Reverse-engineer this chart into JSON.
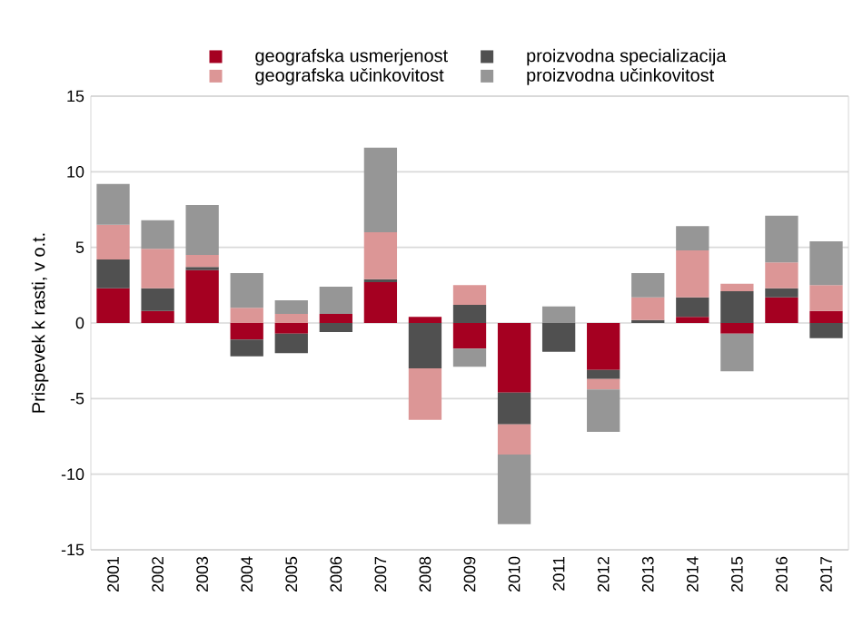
{
  "chart_data": {
    "type": "bar",
    "stacked": true,
    "ylabel": "Prispevek k rasti, v o.t.",
    "categories": [
      "2001",
      "2002",
      "2003",
      "2004",
      "2005",
      "2006",
      "2007",
      "2008",
      "2009",
      "2010",
      "2011",
      "2012",
      "2013",
      "2014",
      "2015",
      "2016",
      "2017"
    ],
    "series": [
      {
        "name": "geografska usmerjenost",
        "color": "#a50021",
        "values": [
          2.3,
          0.8,
          3.5,
          -1.1,
          -0.7,
          0.6,
          2.7,
          0.4,
          -1.7,
          -4.6,
          0,
          -3.1,
          0,
          0.4,
          -0.7,
          1.7,
          0.8
        ]
      },
      {
        "name": "proizvodna specializacija",
        "color": "#505050",
        "values": [
          1.9,
          1.5,
          0.2,
          -1.1,
          -1.3,
          -0.6,
          0.2,
          -3.0,
          1.2,
          -2.1,
          -1.9,
          -0.6,
          0.2,
          1.3,
          2.1,
          0.6,
          -1.0
        ]
      },
      {
        "name": "geografska učinkovitost",
        "color": "#dc9696",
        "values": [
          2.3,
          2.6,
          0.8,
          1.0,
          0.6,
          0,
          3.1,
          -3.4,
          1.3,
          -2.0,
          0,
          -0.7,
          1.5,
          3.1,
          0.5,
          1.7,
          1.7
        ]
      },
      {
        "name": "proizvodna učinkovitost",
        "color": "#969696",
        "values": [
          2.7,
          1.9,
          3.3,
          2.3,
          0.9,
          1.8,
          5.6,
          0,
          -1.2,
          -4.6,
          1.1,
          -2.8,
          1.6,
          1.6,
          -2.5,
          3.1,
          2.9
        ]
      }
    ],
    "ylim": [
      -15,
      15
    ],
    "yticks": [
      -15,
      -10,
      -5,
      0,
      5,
      10,
      15
    ],
    "grid": "y",
    "legend": "top"
  }
}
